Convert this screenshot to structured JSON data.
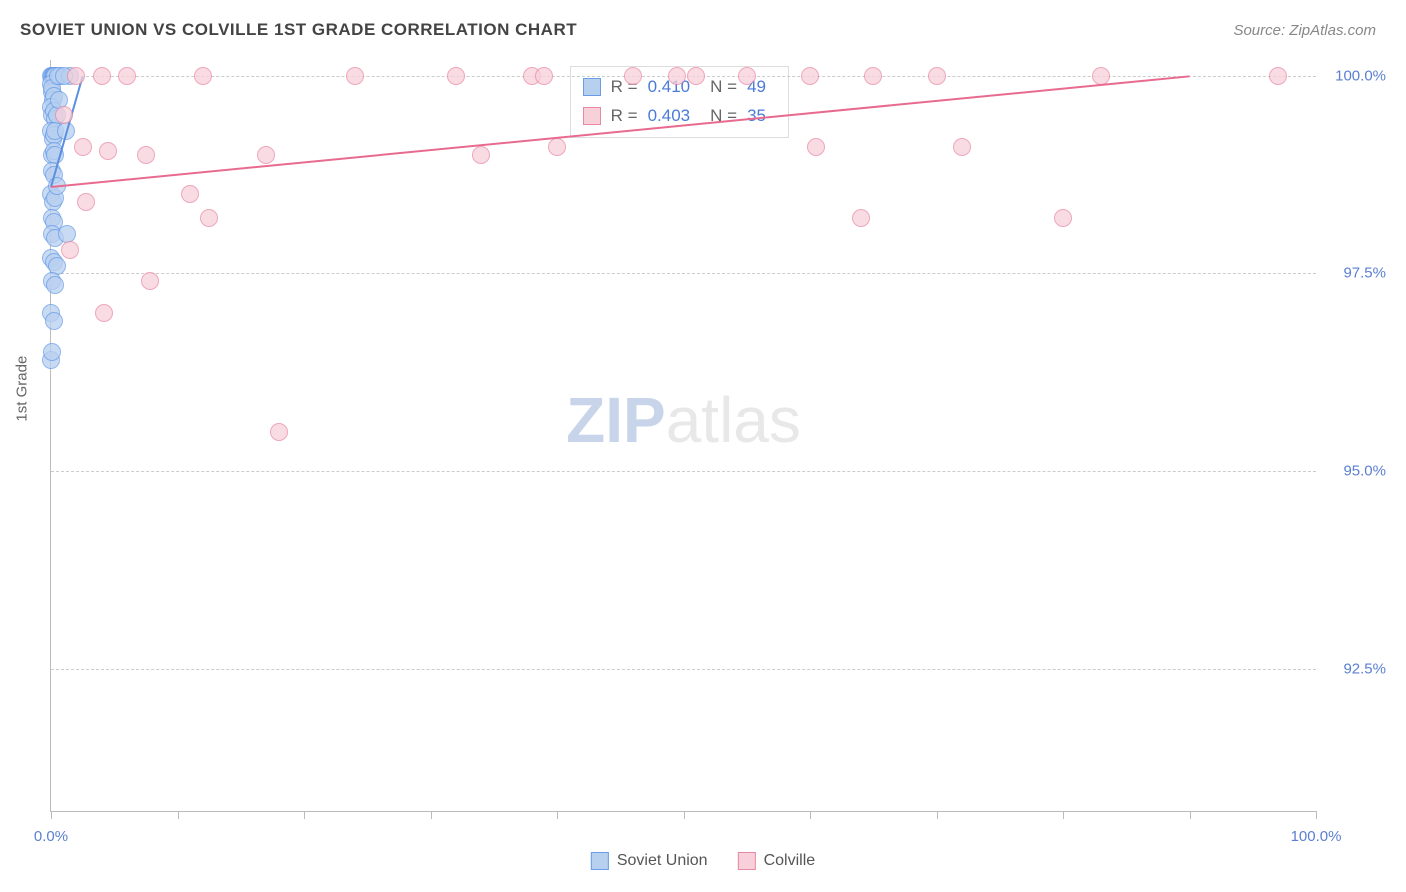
{
  "title": "SOVIET UNION VS COLVILLE 1ST GRADE CORRELATION CHART",
  "source": "Source: ZipAtlas.com",
  "y_axis_label": "1st Grade",
  "watermark": {
    "part1": "ZIP",
    "part2": "atlas"
  },
  "chart": {
    "type": "scatter",
    "xlim": [
      0,
      100
    ],
    "ylim": [
      90.7,
      100.2
    ],
    "x_ticks": [
      0,
      10,
      20,
      30,
      40,
      50,
      60,
      70,
      80,
      90,
      100
    ],
    "x_tick_labels": {
      "0": "0.0%",
      "100": "100.0%"
    },
    "y_ticks": [
      92.5,
      95.0,
      97.5,
      100.0
    ],
    "y_tick_labels": [
      "92.5%",
      "95.0%",
      "97.5%",
      "100.0%"
    ],
    "background_color": "#ffffff",
    "grid_color": "#cccccc",
    "axis_color": "#bbbbbb",
    "marker_radius": 9,
    "marker_stroke_width": 1,
    "series": [
      {
        "name": "Soviet Union",
        "fill_color": "#b8d0f0",
        "stroke_color": "#6a9de8",
        "line_color": "#5b8fe0",
        "r_value": "0.410",
        "n_value": "49",
        "trend": {
          "x1": 0,
          "y1": 98.6,
          "x2": 2.5,
          "y2": 100.0
        },
        "points": [
          [
            0.0,
            100.0
          ],
          [
            0.1,
            100.0
          ],
          [
            0.15,
            100.0
          ],
          [
            0.2,
            100.0
          ],
          [
            0.25,
            100.0
          ],
          [
            0.28,
            100.0
          ],
          [
            0.0,
            99.9
          ],
          [
            0.05,
            99.8
          ],
          [
            0.1,
            99.85
          ],
          [
            0.15,
            99.7
          ],
          [
            0.2,
            99.75
          ],
          [
            0.0,
            99.6
          ],
          [
            0.1,
            99.5
          ],
          [
            0.2,
            99.55
          ],
          [
            0.3,
            99.45
          ],
          [
            0.0,
            99.3
          ],
          [
            0.15,
            99.2
          ],
          [
            0.25,
            99.25
          ],
          [
            0.05,
            99.0
          ],
          [
            0.2,
            99.05
          ],
          [
            0.35,
            99.0
          ],
          [
            0.1,
            98.8
          ],
          [
            0.25,
            98.75
          ],
          [
            0.0,
            98.5
          ],
          [
            0.15,
            98.4
          ],
          [
            0.3,
            98.45
          ],
          [
            0.05,
            98.2
          ],
          [
            0.2,
            98.15
          ],
          [
            0.1,
            98.0
          ],
          [
            0.3,
            97.95
          ],
          [
            0.0,
            97.7
          ],
          [
            0.2,
            97.65
          ],
          [
            0.5,
            97.6
          ],
          [
            0.1,
            97.4
          ],
          [
            0.35,
            97.35
          ],
          [
            0.0,
            97.0
          ],
          [
            0.2,
            96.9
          ],
          [
            0.5,
            99.5
          ],
          [
            0.3,
            99.3
          ],
          [
            0.0,
            96.4
          ],
          [
            0.6,
            99.7
          ],
          [
            0.7,
            100.0
          ],
          [
            0.45,
            98.6
          ],
          [
            0.55,
            100.0
          ],
          [
            0.1,
            96.5
          ],
          [
            1.5,
            100.0
          ],
          [
            1.0,
            100.0
          ],
          [
            1.2,
            99.3
          ],
          [
            1.3,
            98.0
          ]
        ]
      },
      {
        "name": "Colville",
        "fill_color": "#f8d0da",
        "stroke_color": "#e88aa5",
        "line_color": "#e86a8f",
        "r_value": "0.403",
        "n_value": "35",
        "trend": {
          "x1": 0,
          "y1": 98.6,
          "x2": 90,
          "y2": 100.0
        },
        "points": [
          [
            2.0,
            100.0
          ],
          [
            2.5,
            99.1
          ],
          [
            2.8,
            98.4
          ],
          [
            4.0,
            100.0
          ],
          [
            4.5,
            99.05
          ],
          [
            6.0,
            100.0
          ],
          [
            7.5,
            99.0
          ],
          [
            7.8,
            97.4
          ],
          [
            11.0,
            98.5
          ],
          [
            12.0,
            100.0
          ],
          [
            12.5,
            98.2
          ],
          [
            17.0,
            99.0
          ],
          [
            18.0,
            95.5
          ],
          [
            24.0,
            100.0
          ],
          [
            32.0,
            100.0
          ],
          [
            34.0,
            99.0
          ],
          [
            38.0,
            100.0
          ],
          [
            39.0,
            100.0
          ],
          [
            40.0,
            99.1
          ],
          [
            46.0,
            100.0
          ],
          [
            49.5,
            100.0
          ],
          [
            51.0,
            100.0
          ],
          [
            55.0,
            100.0
          ],
          [
            60.0,
            100.0
          ],
          [
            60.5,
            99.1
          ],
          [
            64.0,
            98.2
          ],
          [
            65.0,
            100.0
          ],
          [
            70.0,
            100.0
          ],
          [
            72.0,
            99.1
          ],
          [
            80.0,
            98.2
          ],
          [
            83.0,
            100.0
          ],
          [
            97.0,
            100.0
          ],
          [
            1.5,
            97.8
          ],
          [
            1.0,
            99.5
          ],
          [
            4.2,
            97.0
          ]
        ]
      }
    ]
  },
  "bottom_legend": [
    {
      "label": "Soviet Union",
      "fill": "#b8d0f0",
      "stroke": "#6a9de8"
    },
    {
      "label": "Colville",
      "fill": "#f8d0da",
      "stroke": "#e88aa5"
    }
  ],
  "stats_labels": {
    "r": "R =",
    "n": "N ="
  }
}
